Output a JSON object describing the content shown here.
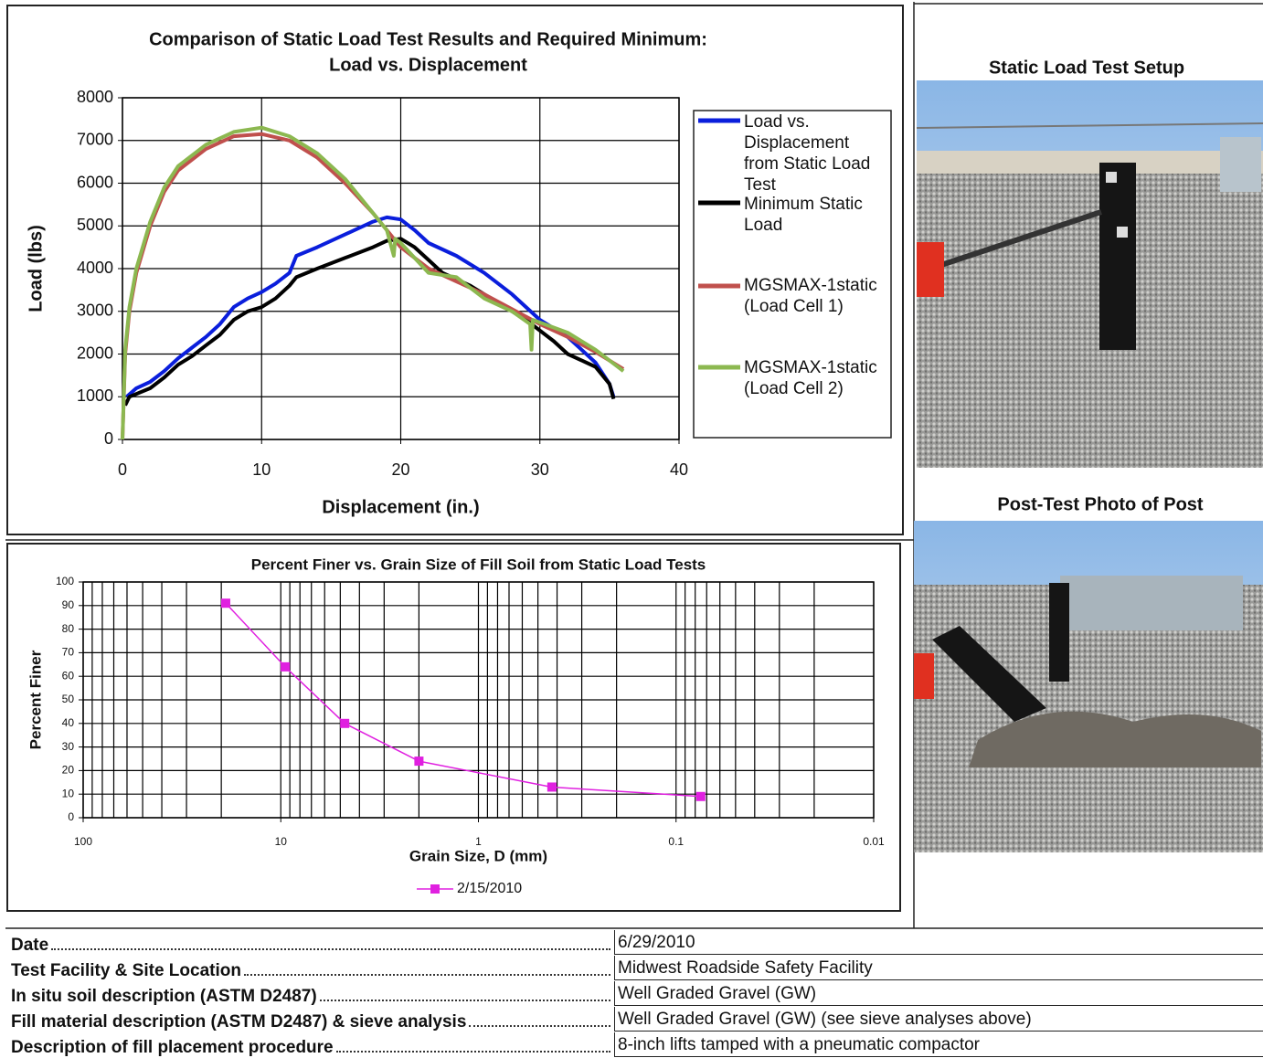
{
  "chart_data": [
    {
      "type": "line",
      "title": "Comparison of Static Load Test Results and Required Minimum:",
      "subtitle": "Load vs. Displacement",
      "x_label": "Displacement (in.)",
      "y_label": "Load (lbs)",
      "xlim": [
        0,
        40
      ],
      "xticks": [
        0,
        10,
        20,
        30,
        40
      ],
      "ylim": [
        0,
        8000
      ],
      "yticks": [
        0,
        1000,
        2000,
        3000,
        4000,
        5000,
        6000,
        7000,
        8000
      ],
      "grid": true,
      "legend": "right",
      "series": [
        {
          "name": "Load vs. Displacement from Static Load Test",
          "color": "#0a1edc",
          "x": [
            0.3,
            1,
            2,
            3,
            4,
            5,
            6,
            7,
            8,
            9,
            10,
            11,
            12,
            12.5,
            14,
            16,
            18,
            19,
            20,
            21,
            22,
            24,
            26,
            28,
            30,
            32,
            33,
            34,
            35,
            35.3
          ],
          "values": [
            1000,
            1200,
            1350,
            1600,
            1900,
            2150,
            2400,
            2700,
            3100,
            3300,
            3450,
            3650,
            3900,
            4300,
            4500,
            4800,
            5100,
            5200,
            5150,
            4900,
            4600,
            4300,
            3900,
            3400,
            2800,
            2400,
            2100,
            1800,
            1300,
            1000
          ]
        },
        {
          "name": "Minimum Static Load",
          "color": "#000000",
          "x": [
            0.2,
            0.5,
            2,
            3,
            4,
            5,
            6,
            7,
            8,
            9,
            10,
            11,
            12,
            12.5,
            14,
            16,
            18,
            19,
            20,
            21,
            22,
            23,
            25,
            27,
            29,
            31,
            32,
            34,
            35,
            35.3
          ],
          "values": [
            800,
            1000,
            1200,
            1450,
            1750,
            1950,
            2200,
            2450,
            2800,
            3000,
            3100,
            3300,
            3600,
            3800,
            4000,
            4250,
            4500,
            4650,
            4700,
            4500,
            4200,
            3900,
            3600,
            3200,
            2800,
            2300,
            2000,
            1700,
            1300,
            950
          ]
        },
        {
          "name": "MGSMAX-1static (Load Cell 1)",
          "color": "#c0504d",
          "x": [
            0,
            0.2,
            0.5,
            1,
            2,
            3,
            4,
            6,
            8,
            10,
            12,
            14,
            16,
            18,
            20,
            22,
            24,
            26,
            28,
            30,
            32,
            34,
            36
          ],
          "values": [
            0,
            2000,
            3000,
            3900,
            5000,
            5800,
            6300,
            6800,
            7100,
            7150,
            7000,
            6600,
            6000,
            5300,
            4500,
            4000,
            3700,
            3400,
            3050,
            2700,
            2400,
            2050,
            1650
          ]
        },
        {
          "name": "MGSMAX-1static (Load Cell 2)",
          "color": "#8cb850",
          "x": [
            0,
            0.2,
            0.5,
            1,
            2,
            3,
            4,
            6,
            8,
            10,
            12,
            14,
            16,
            18,
            19,
            19.5,
            19.6,
            20,
            22,
            24,
            26,
            28,
            29.3,
            29.4,
            29.5,
            32,
            34,
            36
          ],
          "values": [
            0,
            2100,
            3100,
            4000,
            5100,
            5900,
            6400,
            6900,
            7200,
            7300,
            7100,
            6700,
            6100,
            5300,
            4900,
            4300,
            4700,
            4600,
            3900,
            3800,
            3300,
            3000,
            2700,
            2100,
            2800,
            2500,
            2100,
            1600
          ]
        }
      ]
    },
    {
      "type": "line",
      "title": "Percent Finer vs. Grain Size of Fill Soil from Static Load Tests",
      "x_label": "Grain Size, D (mm)",
      "y_label": "Percent Finer",
      "log_x": true,
      "markers": true,
      "grid": true,
      "legend": "bottom",
      "xlim": [
        100,
        0.01
      ],
      "xticks": [
        100,
        10,
        1,
        0.1,
        0.01
      ],
      "xticks_minor": [
        90,
        80,
        70,
        60,
        50,
        40,
        30,
        20,
        9,
        8,
        7,
        6,
        5,
        4,
        3,
        2,
        0.9,
        0.8,
        0.7,
        0.6,
        0.5,
        0.4,
        0.3,
        0.2,
        0.09,
        0.08,
        0.07,
        0.06,
        0.05,
        0.04,
        0.03,
        0.02
      ],
      "ylim": [
        0,
        100
      ],
      "yticks": [
        0,
        10,
        20,
        30,
        40,
        50,
        60,
        70,
        80,
        90,
        100
      ],
      "series": [
        {
          "name": "2/15/2010",
          "color": "#e020e0",
          "x": [
            19,
            9.5,
            4.75,
            2,
            0.425,
            0.075
          ],
          "values": [
            91,
            64,
            40,
            24,
            13,
            9
          ]
        }
      ]
    }
  ],
  "photos": [
    {
      "title": "Static Load Test Setup"
    },
    {
      "title": "Post-Test Photo of Post"
    }
  ],
  "table": {
    "rows": [
      [
        "Date",
        "6/29/2010"
      ],
      [
        "Test Facility & Site Location",
        "Midwest Roadside Safety Facility"
      ],
      [
        "In situ soil description (ASTM D2487)",
        "Well Graded Gravel (GW)"
      ],
      [
        "Fill material description (ASTM D2487) & sieve analysis",
        "Well Graded Gravel (GW) (see sieve analyses above)"
      ],
      [
        "Description of fill placement procedure",
        "8-inch lifts tamped with a pneumatic compactor"
      ]
    ]
  }
}
